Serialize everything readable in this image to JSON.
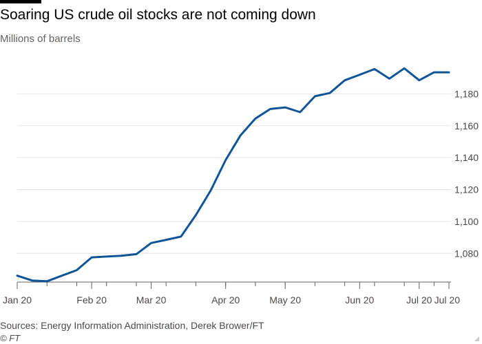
{
  "chart_data": {
    "type": "line",
    "title": "Soaring US crude oil stocks are not coming down",
    "subtitle": "Millions of barrels",
    "xlabel": "",
    "ylabel": "",
    "ylim": [
      1062,
      1200
    ],
    "yticks": [
      1080,
      1100,
      1120,
      1140,
      1160,
      1180
    ],
    "ytick_labels": [
      "1,080",
      "1,100",
      "1,120",
      "1,140",
      "1,160",
      "1,180"
    ],
    "x_tick_labels": [
      "Jan 20",
      "Feb 20",
      "Mar 20",
      "Apr 20",
      "May 20",
      "Jun 20",
      "Jul 20",
      "Jul 20"
    ],
    "x_tick_weeks": [
      0,
      5,
      9,
      14,
      18,
      23,
      27,
      29
    ],
    "series": [
      {
        "color": "#0f5499",
        "weeks": [
          0,
          1,
          2,
          3,
          4,
          5,
          6,
          7,
          8,
          9,
          10,
          11,
          12,
          13,
          14,
          15,
          16,
          17,
          18,
          19,
          20,
          21,
          22,
          23,
          24,
          25,
          26,
          27,
          28,
          29
        ],
        "values": [
          1066,
          1063,
          1062.5,
          1066,
          1069.5,
          1077.5,
          1078,
          1078.5,
          1079.5,
          1086.5,
          1088.5,
          1090.5,
          1104,
          1119.5,
          1138.5,
          1154,
          1164.5,
          1170.5,
          1171.5,
          1168.5,
          1178.5,
          1180.5,
          1188.5,
          1192,
          1195.5,
          1189.5,
          1196,
          1188.5,
          1193.5,
          1193.5
        ]
      }
    ],
    "grid": true,
    "y_axis_position": "right"
  },
  "footer": {
    "source": "Sources: Energy Information Administration, Derek Brower/FT",
    "copyright": "© FT"
  },
  "colors": {
    "line": "#0f5499",
    "grid": "#e6e2df",
    "axis": "#66605c"
  }
}
